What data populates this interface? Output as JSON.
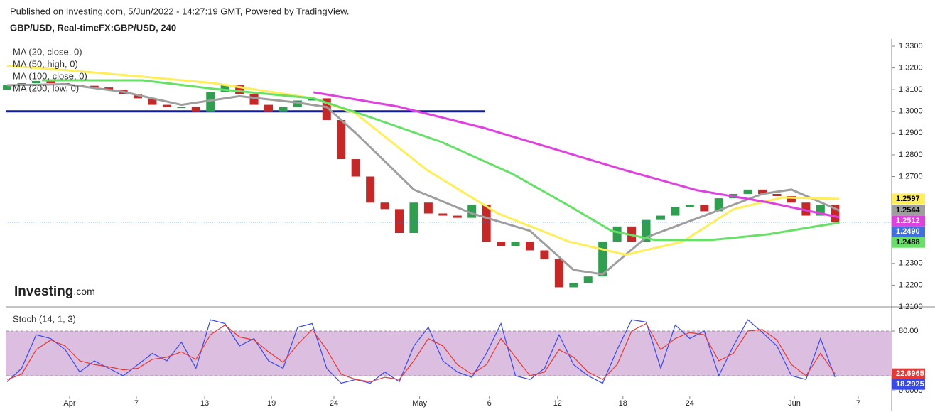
{
  "header": {
    "published": "Published on Investing.com, 5/Jun/2022 - 14:27:19 GMT, Powered by TradingView.",
    "symbol": "GBP/USD, Real-timeFX:GBP/USD, 240"
  },
  "logo": {
    "name": "Investing",
    "suffix": ".com"
  },
  "chart_data": [
    {
      "type": "candlestick",
      "x": [
        0,
        1,
        2,
        3,
        4,
        5,
        6,
        7,
        8,
        9,
        10,
        11,
        12,
        13,
        14,
        15,
        16,
        17,
        18,
        19,
        20,
        21,
        22,
        23,
        24,
        25,
        26,
        27,
        28,
        29,
        30,
        31,
        32,
        33,
        34,
        35,
        36,
        37,
        38,
        39,
        40,
        41,
        42,
        43,
        44,
        45,
        46,
        47,
        48,
        49,
        50,
        51,
        52,
        53,
        54,
        55,
        56,
        57
      ],
      "open": [
        1.31,
        1.312,
        1.313,
        1.314,
        1.313,
        1.312,
        1.3118,
        1.311,
        1.31,
        1.308,
        1.306,
        1.303,
        1.302,
        1.302,
        1.3,
        1.309,
        1.312,
        1.308,
        1.303,
        1.3,
        1.302,
        1.305,
        1.306,
        1.296,
        1.278,
        1.27,
        1.258,
        1.255,
        1.244,
        1.258,
        1.253,
        1.252,
        1.251,
        1.257,
        1.24,
        1.238,
        1.24,
        1.236,
        1.232,
        1.219,
        1.221,
        1.224,
        1.24,
        1.247,
        1.24,
        1.25,
        1.252,
        1.256,
        1.257,
        1.254,
        1.26,
        1.262,
        1.264,
        1.262,
        1.261,
        1.258,
        1.252,
        1.257
      ],
      "close": [
        1.312,
        1.313,
        1.314,
        1.313,
        1.312,
        1.3118,
        1.311,
        1.31,
        1.308,
        1.306,
        1.303,
        1.302,
        1.302,
        1.3,
        1.309,
        1.312,
        1.308,
        1.303,
        1.3,
        1.302,
        1.305,
        1.306,
        1.296,
        1.278,
        1.27,
        1.258,
        1.255,
        1.244,
        1.258,
        1.253,
        1.252,
        1.251,
        1.257,
        1.24,
        1.238,
        1.24,
        1.236,
        1.232,
        1.219,
        1.221,
        1.224,
        1.24,
        1.247,
        1.24,
        1.25,
        1.252,
        1.256,
        1.257,
        1.254,
        1.26,
        1.262,
        1.264,
        1.262,
        1.261,
        1.258,
        1.252,
        1.257,
        1.249
      ],
      "up_color": "#2e9e4f",
      "down_color": "#c62828",
      "last_label": "1.2490",
      "last_color": "#3f6fe0",
      "xlim": [
        -0.1,
        60.9
      ],
      "ylim": [
        1.21,
        1.33
      ],
      "yticks": [
        {
          "value": 1.33,
          "label": "1.3300"
        },
        {
          "value": 1.32,
          "label": "1.3200"
        },
        {
          "value": 1.31,
          "label": "1.3100"
        },
        {
          "value": 1.3,
          "label": "1.3000"
        },
        {
          "value": 1.29,
          "label": "1.2900"
        },
        {
          "value": 1.28,
          "label": "1.2800"
        },
        {
          "value": 1.27,
          "label": "1.2700"
        },
        {
          "value": 1.23,
          "label": "1.2300"
        },
        {
          "value": 1.22,
          "label": "1.2200"
        },
        {
          "value": 1.21,
          "label": "1.2100"
        }
      ],
      "level_line": {
        "value": 1.3,
        "x": [
          -0.1,
          32.9
        ],
        "color": "#0d1ba8"
      },
      "series": [
        {
          "name": "MA (20, close, 0)",
          "color": "#9e9e9e",
          "text_color": "#000000",
          "last_label": "1.2544",
          "x": [
            0,
            4,
            8,
            12,
            16,
            20,
            22,
            24,
            28,
            32,
            36,
            39,
            41,
            44,
            48,
            52,
            54,
            57.3
          ],
          "values": [
            1.312,
            1.3125,
            1.309,
            1.303,
            1.307,
            1.304,
            1.302,
            1.29,
            1.264,
            1.253,
            1.245,
            1.227,
            1.225,
            1.242,
            1.252,
            1.262,
            1.264,
            1.2544
          ]
        },
        {
          "name": "MA (50, high, 0)",
          "color": "#ffee58",
          "text_color": "#000000",
          "last_label": "1.2597",
          "x": [
            0,
            4,
            9.3,
            14.2,
            21.1,
            24.0,
            28.9,
            33.8,
            38.7,
            42.6,
            46.5,
            50.0,
            53.4,
            57.3
          ],
          "values": [
            1.321,
            1.319,
            1.316,
            1.313,
            1.306,
            1.299,
            1.273,
            1.253,
            1.24,
            1.234,
            1.24,
            1.255,
            1.2604,
            1.2597
          ]
        },
        {
          "name": "MA (100, close, 0)",
          "color": "#66e066",
          "text_color": "#000000",
          "last_label": "1.2488",
          "x": [
            2.4,
            9.3,
            14.2,
            21.1,
            25.0,
            29.9,
            34.8,
            38.7,
            41.6,
            44.6,
            48.5,
            52.4,
            57.3
          ],
          "values": [
            1.3143,
            1.3143,
            1.3104,
            1.306,
            1.2973,
            1.2859,
            1.2712,
            1.2565,
            1.245,
            1.2408,
            1.2408,
            1.2434,
            1.2488
          ]
        },
        {
          "name": "MA (200, low, 0)",
          "color": "#e040e0",
          "text_color": "#ffffff",
          "last_label": "1.2512",
          "x": [
            21.1,
            26.9,
            32.8,
            37.7,
            42.6,
            47.5,
            52.4,
            57.3
          ],
          "values": [
            1.3088,
            1.3022,
            1.2924,
            1.2826,
            1.2728,
            1.2637,
            1.2581,
            1.2512
          ]
        }
      ]
    },
    {
      "type": "line",
      "title": "Stoch (14, 1, 3)",
      "x": [
        0,
        1,
        2,
        3,
        4,
        5,
        6,
        7,
        8,
        9,
        10,
        11,
        12,
        13,
        14,
        15,
        16,
        17,
        18,
        19,
        20,
        21,
        22,
        23,
        24,
        25,
        26,
        27,
        28,
        29,
        30,
        31,
        32,
        33,
        34,
        35,
        36,
        37,
        38,
        39,
        40,
        41,
        42,
        43,
        44,
        45,
        46,
        47,
        48,
        49,
        50,
        51,
        52,
        53,
        54,
        55,
        56,
        57
      ],
      "ylim": [
        0,
        100
      ],
      "yticks": [
        {
          "value": 80,
          "label": "80.00"
        },
        {
          "value": 0,
          "label": "0.0000"
        }
      ],
      "band": [
        20,
        80
      ],
      "band_color": "#dcbfe0",
      "xticks": [
        {
          "value": 4.3,
          "label": "Apr"
        },
        {
          "value": 8.9,
          "label": "7"
        },
        {
          "value": 13.6,
          "label": "13"
        },
        {
          "value": 18.2,
          "label": "19"
        },
        {
          "value": 22.5,
          "label": "24"
        },
        {
          "value": 28.4,
          "label": "May"
        },
        {
          "value": 33.2,
          "label": "6"
        },
        {
          "value": 37.9,
          "label": "12"
        },
        {
          "value": 42.4,
          "label": "18"
        },
        {
          "value": 47.0,
          "label": "24"
        },
        {
          "value": 54.2,
          "label": "Jun"
        },
        {
          "value": 58.6,
          "label": "7"
        }
      ],
      "series": [
        {
          "color": "#3949e8",
          "last_label": "18.2925",
          "values": [
            12,
            30,
            75,
            70,
            55,
            25,
            40,
            30,
            20,
            35,
            50,
            40,
            65,
            30,
            95,
            90,
            60,
            70,
            40,
            30,
            85,
            90,
            30,
            10,
            15,
            10,
            25,
            12,
            60,
            85,
            40,
            25,
            18,
            50,
            90,
            20,
            15,
            30,
            75,
            35,
            20,
            10,
            55,
            95,
            92,
            30,
            88,
            70,
            80,
            20,
            60,
            95,
            78,
            60,
            20,
            15,
            70,
            18.2925
          ]
        },
        {
          "color": "#e53935",
          "last_label": "22.6965",
          "values": [
            15,
            22,
            55,
            68,
            60,
            40,
            35,
            32,
            28,
            30,
            42,
            45,
            52,
            42,
            75,
            88,
            72,
            68,
            52,
            38,
            62,
            82,
            55,
            22,
            15,
            12,
            18,
            15,
            40,
            70,
            60,
            35,
            22,
            35,
            70,
            45,
            20,
            25,
            55,
            45,
            25,
            15,
            35,
            80,
            90,
            55,
            70,
            78,
            75,
            40,
            50,
            80,
            82,
            68,
            35,
            20,
            50,
            22.6965
          ]
        }
      ]
    }
  ]
}
